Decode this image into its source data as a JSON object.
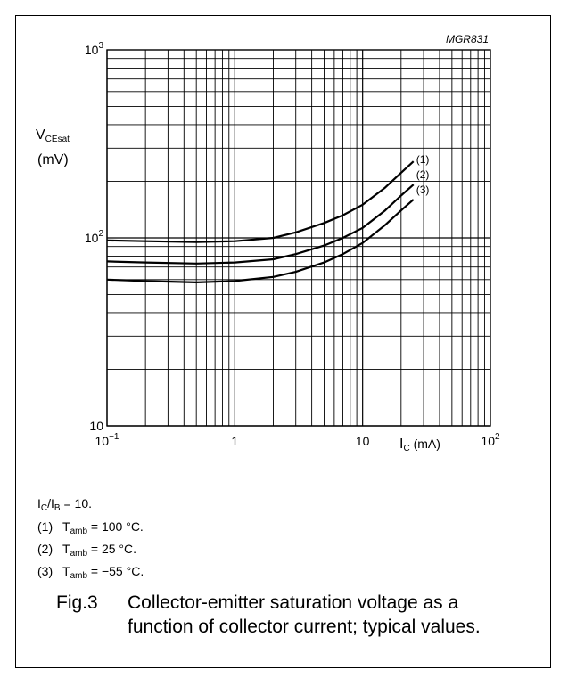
{
  "chart_data": {
    "type": "line",
    "code": "MGR831",
    "x_scale": "log",
    "y_scale": "log",
    "xlim": [
      0.1,
      100
    ],
    "ylim": [
      10,
      1000
    ],
    "x_ticks": [
      {
        "value": 0.1,
        "base": "10",
        "exp": "−1"
      },
      {
        "value": 1,
        "base": "1",
        "exp": ""
      },
      {
        "value": 10,
        "base": "10",
        "exp": ""
      },
      {
        "value": 100,
        "base": "10",
        "exp": "2"
      }
    ],
    "y_ticks": [
      {
        "value": 1000,
        "base": "10",
        "exp": "3"
      },
      {
        "value": 100,
        "base": "10",
        "exp": "2"
      },
      {
        "value": 10,
        "base": "10",
        "exp": ""
      }
    ],
    "ylabel": {
      "symbol": "V",
      "sub": "CEsat",
      "unit": "(mV)"
    },
    "xlabel": {
      "symbol": "I",
      "sub": "C",
      "unit": " (mA)"
    },
    "grid": true,
    "series": [
      {
        "name": "(1)",
        "x": [
          0.1,
          0.2,
          0.5,
          1,
          2,
          3,
          5,
          7,
          10,
          15,
          20,
          25
        ],
        "y": [
          97,
          96,
          95,
          96,
          100,
          107,
          120,
          132,
          150,
          185,
          222,
          255
        ]
      },
      {
        "name": "(2)",
        "x": [
          0.1,
          0.2,
          0.5,
          1,
          2,
          3,
          5,
          7,
          10,
          15,
          20,
          25
        ],
        "y": [
          75,
          74,
          73,
          74,
          77,
          82,
          91,
          100,
          113,
          140,
          168,
          192
        ]
      },
      {
        "name": "(3)",
        "x": [
          0.1,
          0.2,
          0.5,
          1,
          2,
          3,
          5,
          7,
          10,
          15,
          20,
          25
        ],
        "y": [
          60,
          59,
          58,
          59,
          62,
          66,
          74,
          82,
          94,
          117,
          140,
          160
        ]
      }
    ]
  },
  "notes": {
    "ratio": {
      "a": "I",
      "a_sub": "C",
      "sep": "/",
      "b": "I",
      "b_sub": "B",
      "rest": " = 10."
    },
    "items": [
      {
        "num": "(1)",
        "t": "T",
        "sub": "amb",
        "rest": " = 100 °C."
      },
      {
        "num": "(2)",
        "t": "T",
        "sub": "amb",
        "rest": " = 25 °C."
      },
      {
        "num": "(3)",
        "t": "T",
        "sub": "amb",
        "rest": " = −55 °C."
      }
    ]
  },
  "caption": {
    "fig": "Fig.3",
    "line1": "Collector-emitter saturation voltage as a",
    "line2": "function of collector current; typical values."
  }
}
